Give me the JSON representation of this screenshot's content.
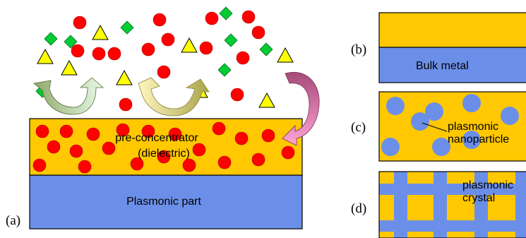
{
  "panels": {
    "a": {
      "tag": "(a)",
      "dielectric_line1": "pre-concentrator",
      "dielectric_line2": "(dielectric)",
      "substrate_label": "Plasmonic part"
    },
    "b": {
      "tag": "(b)",
      "label": "Bulk metal"
    },
    "c": {
      "tag": "(c)",
      "label_line1": "plasmonic",
      "label_line2": "nanoparticle"
    },
    "d": {
      "tag": "(d)",
      "label_line1": "plasmonic",
      "label_line2": "crystal"
    }
  },
  "legend_colors": {
    "dielectric": "#ffc800",
    "plasmonic": "#6b8fe8",
    "red_molecule": "#ff0000",
    "green_molecule": "#00cc33",
    "yellow_molecule": "#ffff00"
  }
}
